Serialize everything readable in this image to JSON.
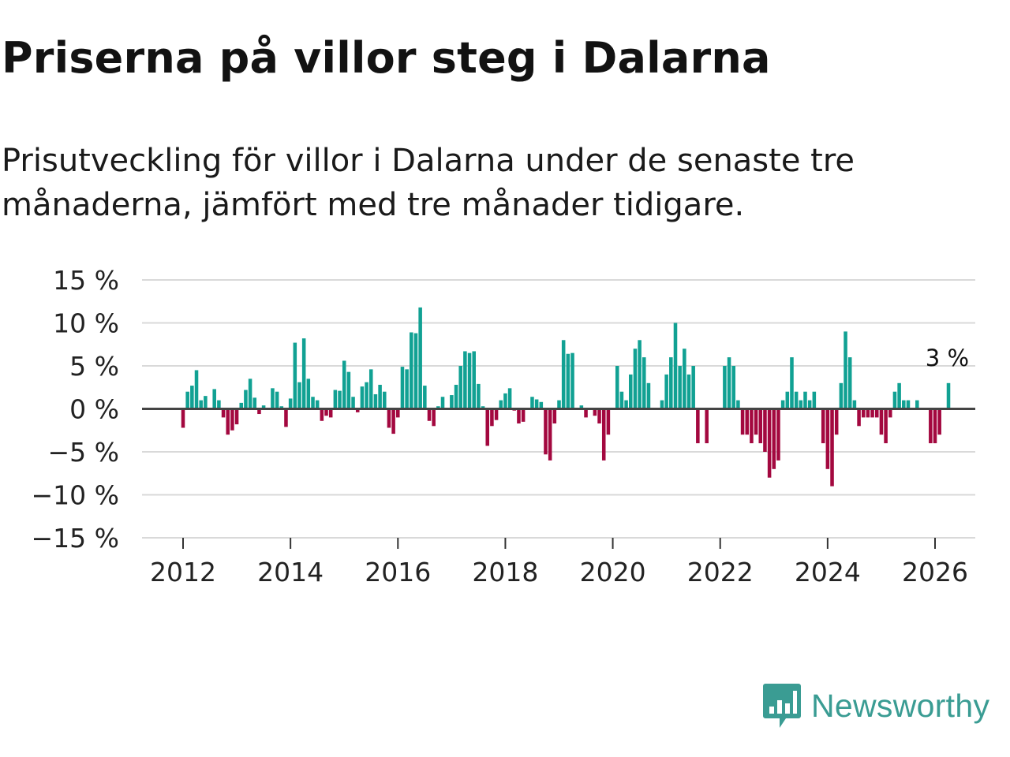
{
  "title": "Priserna på villor steg i Dalarna",
  "subtitle": "Prisutveckling för villor i Dalarna under de senaste tre månaderna, jämfört med tre månader tidigare.",
  "brand": "Newsworthy",
  "colors": {
    "positive": "#11a193",
    "negative": "#a3083f",
    "zero_line": "#444444",
    "grid": "#d9d9d9",
    "brand": "#3a9c93"
  },
  "chart_data": {
    "type": "bar",
    "title": "Priserna på villor steg i Dalarna",
    "ylabel": "",
    "xlabel": "",
    "ylim": [
      -15,
      15
    ],
    "yticks": [
      {
        "value": 15,
        "label": "15 %"
      },
      {
        "value": 10,
        "label": "10 %"
      },
      {
        "value": 5,
        "label": "5 %"
      },
      {
        "value": 0,
        "label": "0 %"
      },
      {
        "value": -5,
        "label": "−5 %"
      },
      {
        "value": -10,
        "label": "−10 %"
      },
      {
        "value": -15,
        "label": "−15 %"
      }
    ],
    "xticks": [
      "2012",
      "2014",
      "2016",
      "2018",
      "2020",
      "2022",
      "2024",
      "2026"
    ],
    "start": {
      "year": 2012,
      "month": 1
    },
    "frequency": "monthly",
    "end_label": "3 %",
    "values": [
      -2.2,
      2.0,
      2.7,
      4.5,
      1.0,
      1.5,
      0.0,
      2.3,
      1.0,
      -1.0,
      -3.0,
      -2.5,
      -1.8,
      0.7,
      2.2,
      3.5,
      1.3,
      -0.6,
      0.4,
      0.0,
      2.4,
      2.0,
      0.3,
      -2.1,
      1.2,
      7.7,
      3.1,
      8.2,
      3.5,
      1.4,
      1.0,
      -1.4,
      -0.8,
      -1.0,
      2.2,
      2.1,
      5.6,
      4.3,
      1.4,
      -0.4,
      2.6,
      3.1,
      4.6,
      1.7,
      2.8,
      2.0,
      -2.2,
      -2.9,
      -1.0,
      4.9,
      4.6,
      8.9,
      8.8,
      11.8,
      2.7,
      -1.4,
      -2.0,
      0.3,
      1.4,
      0.0,
      1.6,
      2.8,
      5.0,
      6.7,
      6.5,
      6.7,
      2.9,
      0.3,
      -4.3,
      -2.0,
      -1.3,
      1.0,
      1.8,
      2.4,
      -0.2,
      -1.7,
      -1.5,
      0.0,
      1.4,
      1.1,
      0.8,
      -5.3,
      -6.0,
      -1.7,
      1.0,
      8.0,
      6.4,
      6.5,
      0.0,
      0.4,
      -1.0,
      0.0,
      -0.8,
      -1.7,
      -6.0,
      -3.0,
      0.0,
      5.0,
      2.0,
      1.0,
      4.0,
      7.0,
      8.0,
      6.0,
      3.0,
      0.0,
      0.0,
      1.0,
      4.0,
      6.0,
      10.0,
      5.0,
      7.0,
      4.0,
      5.0,
      -4.0,
      0.0,
      -4.0,
      0.0,
      0.0,
      0.0,
      5.0,
      6.0,
      5.0,
      1.0,
      -3.0,
      -3.0,
      -4.0,
      -3.0,
      -4.0,
      -5.0,
      -8.0,
      -7.0,
      -6.0,
      1.0,
      2.0,
      6.0,
      2.0,
      1.0,
      2.0,
      1.0,
      2.0,
      0.0,
      -4.0,
      -7.0,
      -9.0,
      -3.0,
      3.0,
      9.0,
      6.0,
      1.0,
      -2.0,
      -1.0,
      -1.0,
      -1.0,
      -1.0,
      -3.0,
      -4.0,
      -1.0,
      2.0,
      3.0,
      1.0,
      1.0,
      0.0,
      1.0,
      0.0,
      0.0,
      -4.0,
      -4.0,
      -3.0,
      0.0,
      3.0
    ]
  }
}
